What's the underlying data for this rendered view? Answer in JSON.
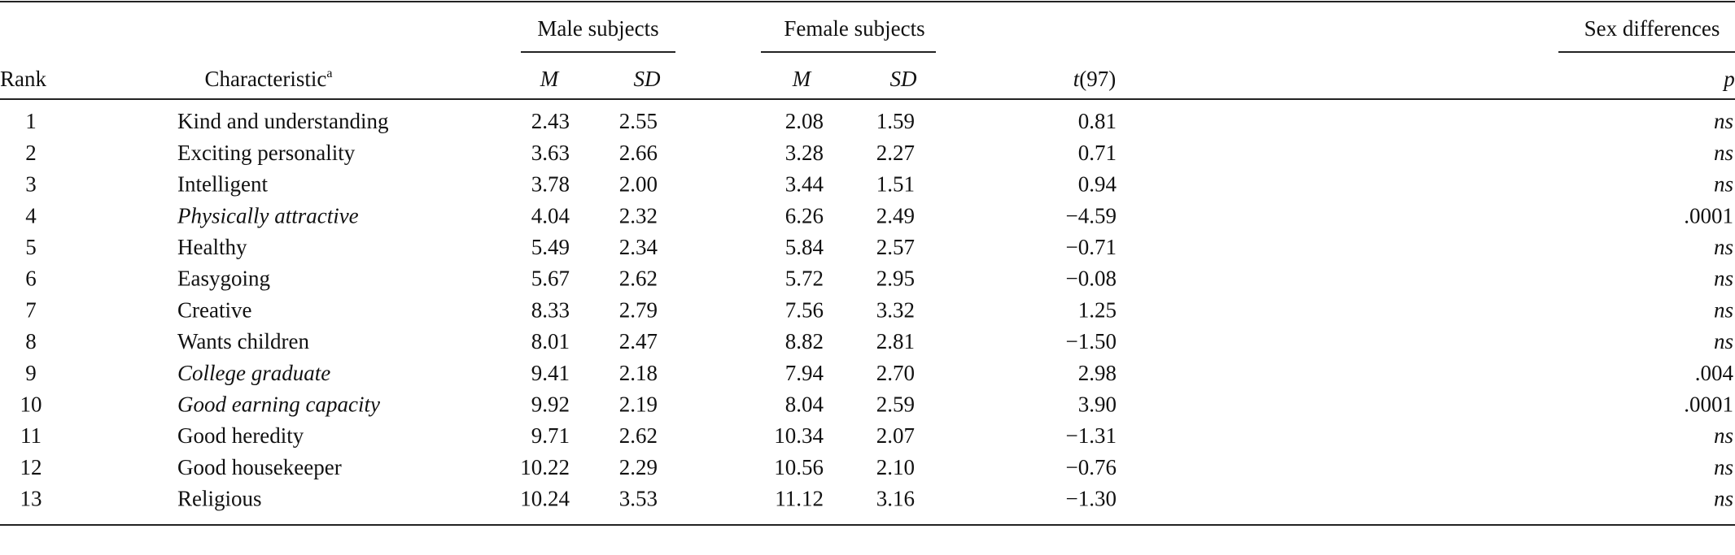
{
  "table": {
    "groups": [
      "Male subjects",
      "Female subjects",
      "Sex differences"
    ],
    "columns": [
      "Rank",
      {
        "text": "Characteristic",
        "note": "a"
      },
      "M",
      "SD",
      "M",
      "SD",
      {
        "italic_part": "t",
        "text": "(97)"
      },
      "p"
    ],
    "rows": [
      {
        "cells": [
          "1",
          "Kind and understanding",
          "2.43",
          "2.55",
          "2.08",
          "1.59",
          "0.81",
          "ns"
        ]
      },
      {
        "cells": [
          "2",
          "Exciting personality",
          "3.63",
          "2.66",
          "3.28",
          "2.27",
          "0.71",
          "ns"
        ]
      },
      {
        "cells": [
          "3",
          "Intelligent",
          "3.78",
          "2.00",
          "3.44",
          "1.51",
          "0.94",
          "ns"
        ]
      },
      {
        "cells": [
          "4",
          "Physically attractive",
          "4.04",
          "2.32",
          "6.26",
          "2.49",
          "−4.59",
          ".0001"
        ],
        "emphasized": true
      },
      {
        "cells": [
          "5",
          "Healthy",
          "5.49",
          "2.34",
          "5.84",
          "2.57",
          "−0.71",
          "ns"
        ]
      },
      {
        "cells": [
          "6",
          "Easygoing",
          "5.67",
          "2.62",
          "5.72",
          "2.95",
          "−0.08",
          "ns"
        ]
      },
      {
        "cells": [
          "7",
          "Creative",
          "8.33",
          "2.79",
          "7.56",
          "3.32",
          "1.25",
          "ns"
        ]
      },
      {
        "cells": [
          "8",
          "Wants children",
          "8.01",
          "2.47",
          "8.82",
          "2.81",
          "−1.50",
          "ns"
        ]
      },
      {
        "cells": [
          "9",
          "College graduate",
          "9.41",
          "2.18",
          "7.94",
          "2.70",
          "2.98",
          ".004"
        ],
        "emphasized": true
      },
      {
        "cells": [
          "10",
          "Good earning capacity",
          "9.92",
          "2.19",
          "8.04",
          "2.59",
          "3.90",
          ".0001"
        ],
        "emphasized": true
      },
      {
        "cells": [
          "11",
          "Good heredity",
          "9.71",
          "2.62",
          "10.34",
          "2.07",
          "−1.31",
          "ns"
        ]
      },
      {
        "cells": [
          "12",
          "Good housekeeper",
          "10.22",
          "2.29",
          "10.56",
          "2.10",
          "−0.76",
          "ns"
        ]
      },
      {
        "cells": [
          "13",
          "Religious",
          "10.24",
          "3.53",
          "11.12",
          "3.16",
          "−1.30",
          "ns"
        ]
      }
    ]
  }
}
